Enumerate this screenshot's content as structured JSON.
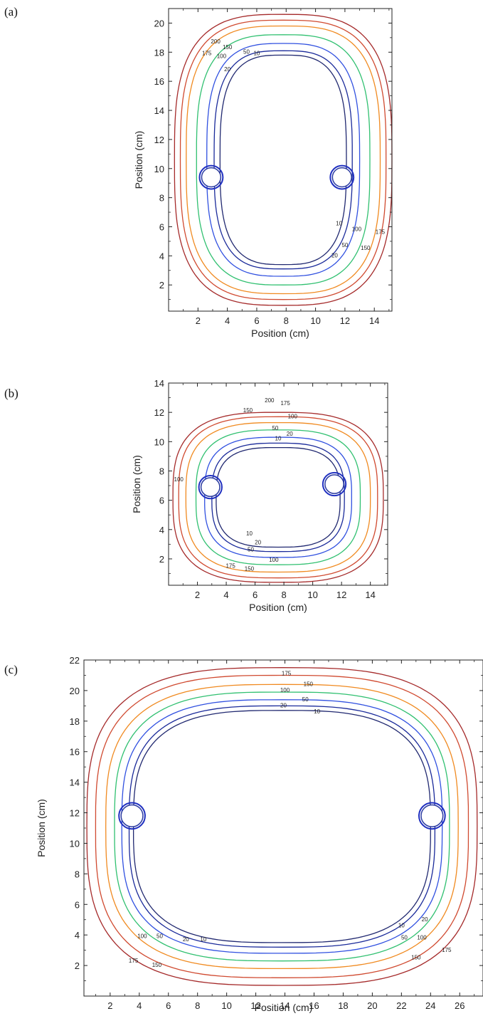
{
  "chart_data": [
    {
      "panel": "(a)",
      "type": "contour",
      "xlabel": "Position (cm)",
      "ylabel": "Position (cm)",
      "xlim": [
        0,
        15.2
      ],
      "ylim": [
        0.2,
        21
      ],
      "xticks": [
        2,
        4,
        6,
        8,
        10,
        12,
        14
      ],
      "yticks": [
        2,
        4,
        6,
        8,
        10,
        12,
        14,
        16,
        18,
        20
      ],
      "center": [
        7.8,
        10.6
      ],
      "levels": [
        {
          "label": "200",
          "color": "#a52a2a",
          "rx": 7.4,
          "ry": 10.0,
          "squareness": 0.55
        },
        {
          "label": "175",
          "color": "#d04a30",
          "rx": 7.0,
          "ry": 9.6,
          "squareness": 0.55
        },
        {
          "label": "150",
          "color": "#f08a20",
          "rx": 6.6,
          "ry": 9.2,
          "squareness": 0.55
        },
        {
          "label": "100",
          "color": "#30c070",
          "rx": 5.9,
          "ry": 8.6,
          "squareness": 0.55
        },
        {
          "label": "50",
          "color": "#3050e0",
          "rx": 5.2,
          "ry": 8.0,
          "squareness": 0.55
        },
        {
          "label": "20",
          "color": "#1a2a9a",
          "rx": 4.7,
          "ry": 7.5,
          "squareness": 0.55
        },
        {
          "label": "10",
          "color": "#202870",
          "rx": 4.3,
          "ry": 7.2,
          "squareness": 0.55
        }
      ],
      "label_points": [
        {
          "text": "200",
          "x": 3.2,
          "y": 18.6
        },
        {
          "text": "150",
          "x": 4.0,
          "y": 18.2
        },
        {
          "text": "175",
          "x": 2.6,
          "y": 17.8
        },
        {
          "text": "100",
          "x": 3.6,
          "y": 17.6
        },
        {
          "text": "50",
          "x": 5.3,
          "y": 17.9
        },
        {
          "text": "10",
          "x": 6.0,
          "y": 17.8
        },
        {
          "text": "20",
          "x": 4.0,
          "y": 16.7
        },
        {
          "text": "10",
          "x": 11.6,
          "y": 6.1
        },
        {
          "text": "100",
          "x": 12.8,
          "y": 5.7
        },
        {
          "text": "175",
          "x": 14.4,
          "y": 5.5
        },
        {
          "text": "50",
          "x": 12.0,
          "y": 4.6
        },
        {
          "text": "150",
          "x": 13.4,
          "y": 4.4
        },
        {
          "text": "20",
          "x": 11.3,
          "y": 3.9
        }
      ],
      "markers": [
        {
          "x": 2.9,
          "y": 9.4,
          "r": 0.65
        },
        {
          "x": 11.8,
          "y": 9.4,
          "r": 0.65
        }
      ]
    },
    {
      "panel": "(b)",
      "type": "contour",
      "xlabel": "Position (cm)",
      "ylabel": "Position (cm)",
      "xlim": [
        0,
        15.2
      ],
      "ylim": [
        0.2,
        14
      ],
      "xticks": [
        2,
        4,
        6,
        8,
        10,
        12,
        14
      ],
      "yticks": [
        2,
        4,
        6,
        8,
        10,
        12,
        14
      ],
      "center": [
        7.6,
        6.2
      ],
      "levels": [
        {
          "label": "200",
          "color": "#a52a2a",
          "rx": 7.3,
          "ry": 5.8,
          "squareness": 0.5
        },
        {
          "label": "175",
          "color": "#d04a30",
          "rx": 6.9,
          "ry": 5.5,
          "squareness": 0.5
        },
        {
          "label": "150",
          "color": "#f08a20",
          "rx": 6.4,
          "ry": 5.1,
          "squareness": 0.5
        },
        {
          "label": "100",
          "color": "#30c070",
          "rx": 5.7,
          "ry": 4.6,
          "squareness": 0.5
        },
        {
          "label": "50",
          "color": "#3050e0",
          "rx": 5.1,
          "ry": 4.1,
          "squareness": 0.5
        },
        {
          "label": "20",
          "color": "#1a2a9a",
          "rx": 4.6,
          "ry": 3.7,
          "squareness": 0.5
        },
        {
          "label": "10",
          "color": "#202870",
          "rx": 4.3,
          "ry": 3.4,
          "squareness": 0.5
        }
      ],
      "label_points": [
        {
          "text": "200",
          "x": 7.0,
          "y": 12.7
        },
        {
          "text": "175",
          "x": 8.1,
          "y": 12.5
        },
        {
          "text": "150",
          "x": 5.5,
          "y": 12.0
        },
        {
          "text": "100",
          "x": 8.6,
          "y": 11.6
        },
        {
          "text": "50",
          "x": 7.4,
          "y": 10.8
        },
        {
          "text": "20",
          "x": 8.4,
          "y": 10.4
        },
        {
          "text": "10",
          "x": 7.6,
          "y": 10.1
        },
        {
          "text": "100",
          "x": 0.7,
          "y": 7.3
        },
        {
          "text": "10",
          "x": 5.6,
          "y": 3.6
        },
        {
          "text": "20",
          "x": 6.2,
          "y": 3.0
        },
        {
          "text": "50",
          "x": 5.7,
          "y": 2.5
        },
        {
          "text": "100",
          "x": 7.3,
          "y": 1.8
        },
        {
          "text": "175",
          "x": 4.3,
          "y": 1.4
        },
        {
          "text": "150",
          "x": 5.6,
          "y": 1.2
        }
      ],
      "markers": [
        {
          "x": 2.9,
          "y": 6.9,
          "r": 0.65
        },
        {
          "x": 11.5,
          "y": 7.1,
          "r": 0.65
        }
      ]
    },
    {
      "panel": "(c)",
      "type": "contour",
      "xlabel": "Position (cm)",
      "ylabel": "Position (cm)",
      "xlim": [
        0.2,
        27.6
      ],
      "ylim": [
        0,
        22
      ],
      "xticks": [
        2,
        4,
        6,
        8,
        10,
        12,
        14,
        16,
        18,
        20,
        22,
        24,
        26
      ],
      "yticks": [
        2,
        4,
        6,
        8,
        10,
        12,
        14,
        16,
        18,
        20,
        22
      ],
      "center": [
        13.8,
        11.1
      ],
      "levels": [
        {
          "label": "200",
          "color": "#a52a2a",
          "rx": 13.4,
          "ry": 10.4,
          "squareness": 0.55
        },
        {
          "label": "175",
          "color": "#d04a30",
          "rx": 12.8,
          "ry": 9.9,
          "squareness": 0.55
        },
        {
          "label": "150",
          "color": "#f08a20",
          "rx": 12.1,
          "ry": 9.3,
          "squareness": 0.55
        },
        {
          "label": "100",
          "color": "#30c070",
          "rx": 11.5,
          "ry": 8.8,
          "squareness": 0.55
        },
        {
          "label": "50",
          "color": "#3050e0",
          "rx": 11.0,
          "ry": 8.3,
          "squareness": 0.55
        },
        {
          "label": "20",
          "color": "#1a2a9a",
          "rx": 10.5,
          "ry": 7.9,
          "squareness": 0.55
        },
        {
          "label": "10",
          "color": "#202870",
          "rx": 10.2,
          "ry": 7.6,
          "squareness": 0.55
        }
      ],
      "label_points": [
        {
          "text": "175",
          "x": 14.1,
          "y": 21.0
        },
        {
          "text": "150",
          "x": 15.6,
          "y": 20.3
        },
        {
          "text": "100",
          "x": 14.0,
          "y": 19.9
        },
        {
          "text": "50",
          "x": 15.4,
          "y": 19.3
        },
        {
          "text": "20",
          "x": 13.9,
          "y": 18.9
        },
        {
          "text": "10",
          "x": 16.2,
          "y": 18.5
        },
        {
          "text": "100",
          "x": 4.2,
          "y": 3.8
        },
        {
          "text": "50",
          "x": 5.4,
          "y": 3.8
        },
        {
          "text": "20",
          "x": 7.2,
          "y": 3.6
        },
        {
          "text": "10",
          "x": 8.4,
          "y": 3.6
        },
        {
          "text": "175",
          "x": 3.6,
          "y": 2.2
        },
        {
          "text": "150",
          "x": 5.2,
          "y": 1.9
        },
        {
          "text": "10",
          "x": 22.0,
          "y": 4.5
        },
        {
          "text": "20",
          "x": 23.6,
          "y": 4.9
        },
        {
          "text": "50",
          "x": 22.2,
          "y": 3.7
        },
        {
          "text": "100",
          "x": 23.4,
          "y": 3.7
        },
        {
          "text": "175",
          "x": 25.1,
          "y": 2.9
        },
        {
          "text": "150",
          "x": 23.0,
          "y": 2.4
        }
      ],
      "markers": [
        {
          "x": 3.5,
          "y": 11.8,
          "r": 0.75
        },
        {
          "x": 24.1,
          "y": 11.8,
          "r": 0.75
        }
      ]
    }
  ]
}
